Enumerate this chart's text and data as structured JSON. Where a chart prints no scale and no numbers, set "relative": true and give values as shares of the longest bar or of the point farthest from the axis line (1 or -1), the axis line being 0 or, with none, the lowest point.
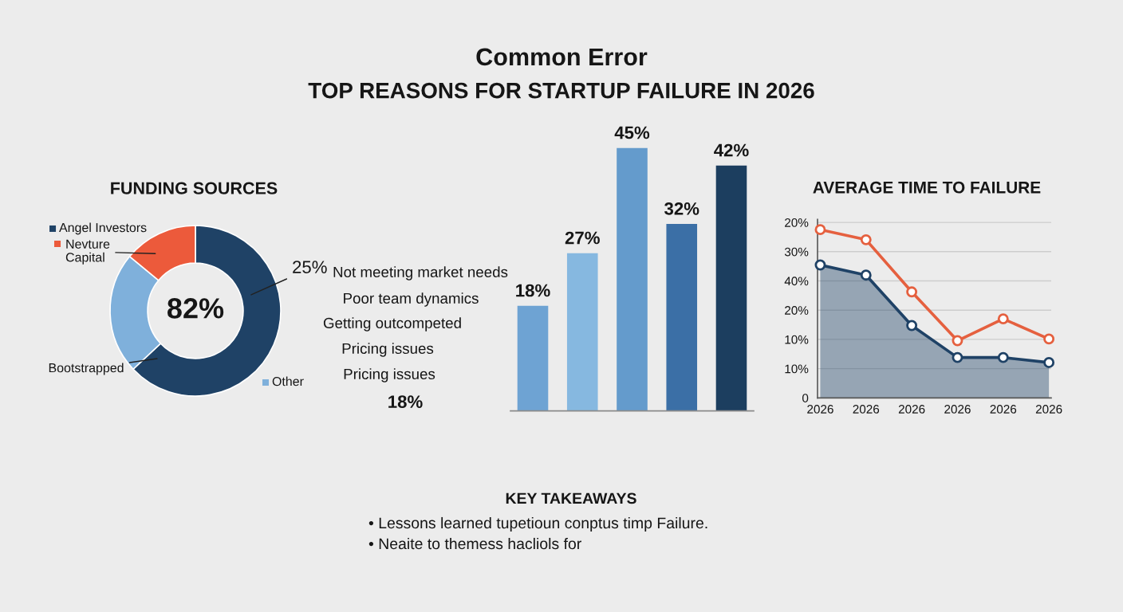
{
  "chart_data": [
    {
      "type": "other",
      "title": "Common Error",
      "subtitle": "TOP REASONS FOR STARTUP FAILURE IN 2026"
    },
    {
      "type": "donut",
      "title": "FUNDING SOURCES",
      "categories": [
        "Angel Investors",
        "Other",
        "Nevture Capital"
      ],
      "values": [
        63,
        23,
        14
      ],
      "colors": [
        "#1f4266",
        "#7fb0db",
        "#ec5a3b"
      ],
      "legend": "top left",
      "annotations": [
        "82%",
        "25%",
        "Bootstrapped"
      ]
    },
    {
      "type": "bar",
      "categories": [
        null,
        null,
        null,
        null,
        null
      ],
      "values": [
        18,
        27,
        45,
        32,
        42
      ],
      "colors": [
        "#6ea3d3",
        "#86b8e0",
        "#649bcc",
        "#3b6fa6",
        "#1c3e5f"
      ],
      "value_labels": [
        "18%",
        "27%",
        "45%",
        "32%",
        "42%"
      ],
      "annotations": [
        "Not meeting market needs",
        "Poor team dynamics",
        "Getting outcompeted",
        "Pricing issues",
        "Pricing issues",
        "18%"
      ]
    },
    {
      "type": "line",
      "title": "AVERAGE TIME TO FAILURE",
      "relative": true,
      "categories": [
        "2026",
        "2026",
        "2026",
        "2026",
        "2026",
        "2026"
      ],
      "y_categories": [
        "20%",
        "30%",
        "40%",
        "20%",
        "10%",
        "10%",
        "0"
      ],
      "series": [
        {
          "type": "area",
          "color": "#1f4266",
          "values": [
            0.79,
            0.73,
            0.43,
            0.24,
            0.24,
            0.21
          ]
        },
        {
          "type": "line",
          "color": "#e5603f",
          "values": [
            1,
            0.94,
            0.63,
            0.34,
            0.47,
            0.35
          ]
        }
      ],
      "grid": "y",
      "marker": "circle"
    },
    {
      "type": "other",
      "title": "KEY TAKEAWAYS",
      "annotations": [
        "• Lessons learned tupetioun conptus timp Failure.",
        "• Neaite to themess hacliols for"
      ]
    }
  ]
}
